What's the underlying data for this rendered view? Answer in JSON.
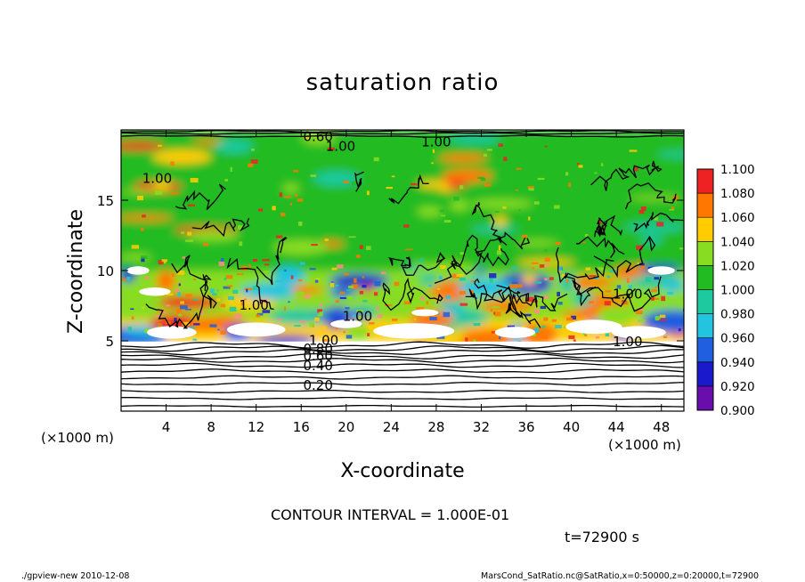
{
  "chart_data": {
    "type": "heatmap",
    "title": "saturation ratio",
    "xlabel": "X-coordinate",
    "ylabel": "Z-coordinate",
    "x_unit_left": "(×1000 m)",
    "x_unit_right": "(×1000 m)",
    "xlim": [
      0,
      50
    ],
    "ylim": [
      0,
      20
    ],
    "xticks": [
      4,
      8,
      12,
      16,
      20,
      24,
      28,
      32,
      36,
      40,
      44,
      48
    ],
    "yticks": [
      5,
      10,
      15
    ],
    "colorbar": {
      "levels": [
        "0.900",
        "0.920",
        "0.940",
        "0.960",
        "0.980",
        "1.000",
        "1.020",
        "1.040",
        "1.060",
        "1.080",
        "1.100"
      ],
      "colors": [
        "#6a0dad",
        "#1a1acc",
        "#1f5fe0",
        "#22c4e0",
        "#1ec9a0",
        "#22bb22",
        "#88dd22",
        "#ffcc00",
        "#ff7700",
        "#ee2222",
        "#ff8a8a"
      ]
    },
    "contour_labels": [
      {
        "text": "0.60",
        "x": 17.5,
        "y": 19.6
      },
      {
        "text": "1.00",
        "x": 19.5,
        "y": 18.9
      },
      {
        "text": "1.00",
        "x": 28.0,
        "y": 19.2
      },
      {
        "text": "1.00",
        "x": 3.2,
        "y": 16.6
      },
      {
        "text": "1.00",
        "x": 45.0,
        "y": 8.4
      },
      {
        "text": "1.00",
        "x": 11.8,
        "y": 7.6
      },
      {
        "text": "1.00",
        "x": 21.0,
        "y": 6.8
      },
      {
        "text": "1.00",
        "x": 45.0,
        "y": 5.0
      },
      {
        "text": "1.00",
        "x": 18.0,
        "y": 5.1
      },
      {
        "text": "0.80",
        "x": 17.5,
        "y": 4.5
      },
      {
        "text": "0.60",
        "x": 17.5,
        "y": 4.0
      },
      {
        "text": "0.40",
        "x": 17.5,
        "y": 3.3
      },
      {
        "text": "0.20",
        "x": 17.5,
        "y": 1.9
      }
    ],
    "contour_interval": "CONTOUR INTERVAL = 1.000E-01",
    "time_label": "t=72900 s"
  },
  "footer": {
    "left": "./gpview-new   2010-12-08",
    "right": "MarsCond_SatRatio.nc@SatRatio,x=0:50000,z=0:20000,t=72900"
  }
}
